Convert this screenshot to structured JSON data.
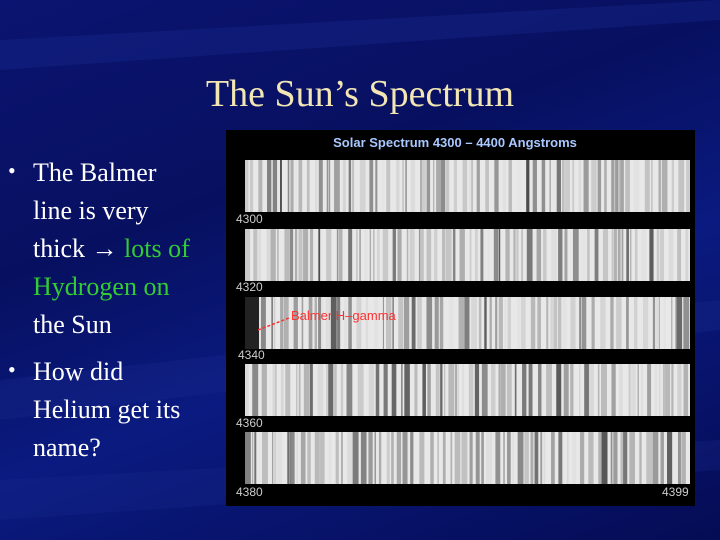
{
  "title": "The Sun’s Spectrum",
  "bullets": [
    {
      "line1": "The Balmer",
      "line2": "line is very",
      "line3": "thick",
      "arrow": "→",
      "highlight1": "lots of",
      "highlight2": "Hydrogen on",
      "line4": "the Sun"
    },
    {
      "line1": "How did",
      "line2": "Helium get its",
      "line3": "name?"
    }
  ],
  "figure": {
    "title": "Solar Spectrum 4300 – 4400 Angstroms",
    "labels": [
      "4300",
      "4320",
      "4340",
      "4360",
      "4380",
      "4399"
    ],
    "annotation": "Balmer H–gamma"
  }
}
